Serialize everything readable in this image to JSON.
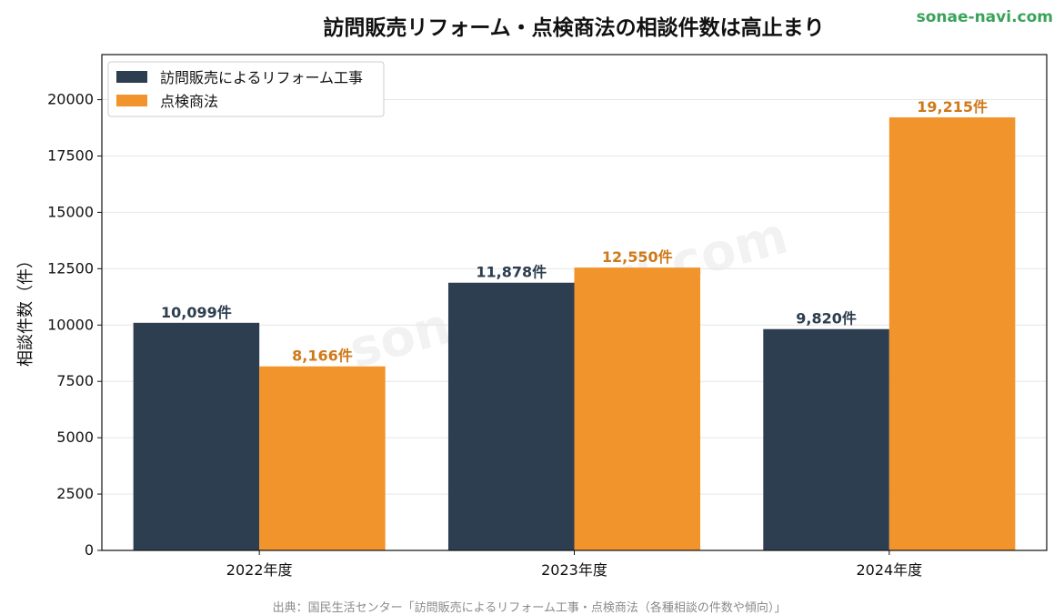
{
  "header": {
    "title": "訪問販売リフォーム・点検商法の相談件数は高止まり",
    "brand": "sonae-navi.com",
    "watermark": "sonae-navi.com"
  },
  "footer": {
    "source": "出典：国民生活センター「訪問販売によるリフォーム工事・点検商法（各種相談の件数や傾向）」"
  },
  "colors": {
    "series1": "#2d3e50",
    "series2": "#f0942b",
    "series2_label": "#d0791a",
    "brand": "#3aa35a"
  },
  "chart_data": {
    "type": "bar",
    "title": "訪問販売リフォーム・点検商法の相談件数は高止まり",
    "xlabel": "",
    "ylabel": "相談件数（件）",
    "categories": [
      "2022年度",
      "2023年度",
      "2024年度"
    ],
    "series": [
      {
        "name": "訪問販売によるリフォーム工事",
        "values": [
          10099,
          11878,
          9820
        ],
        "labels": [
          "10,099件",
          "11,878件",
          "9,820件"
        ]
      },
      {
        "name": "点検商法",
        "values": [
          8166,
          12550,
          19215
        ],
        "labels": [
          "8,166件",
          "12,550件",
          "19,215件"
        ]
      }
    ],
    "ylim": [
      0,
      22000
    ],
    "yticks": [
      0,
      2500,
      5000,
      7500,
      10000,
      12500,
      15000,
      17500,
      20000
    ],
    "ytick_labels": [
      "0",
      "2500",
      "5000",
      "7500",
      "10000",
      "12500",
      "15000",
      "17500",
      "20000"
    ],
    "grid": true,
    "legend_position": "top-left"
  }
}
